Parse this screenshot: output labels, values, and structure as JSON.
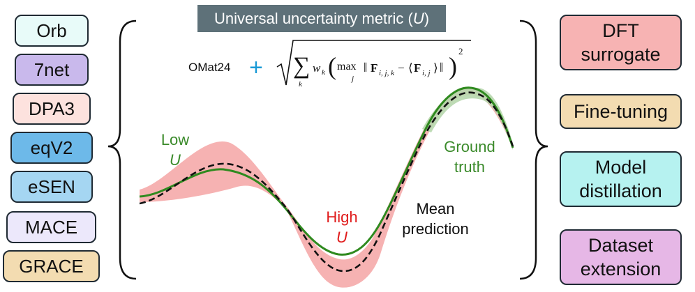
{
  "models": [
    {
      "label": "Orb",
      "color": "#e8fbf9"
    },
    {
      "label": "7net",
      "color": "#c9b9ec"
    },
    {
      "label": "DPA3",
      "color": "#fde2de"
    },
    {
      "label": "eqV2",
      "color": "#6db9e9"
    },
    {
      "label": "eSEN",
      "color": "#a5d6f2"
    },
    {
      "label": "MACE",
      "color": "#ece8fb"
    },
    {
      "label": "GRACE",
      "color": "#f3dcb1"
    }
  ],
  "applications": [
    {
      "lines": [
        "DFT",
        "surrogate"
      ],
      "color": "#f7b3b3"
    },
    {
      "lines": [
        "Fine-tuning"
      ],
      "color": "#f3dcb1"
    },
    {
      "lines": [
        "Model",
        "distillation"
      ],
      "color": "#b6f2f0"
    },
    {
      "lines": [
        "Dataset",
        "extension"
      ],
      "color": "#e6b7e6"
    }
  ],
  "title": {
    "text": "Universal uncertainty metric (",
    "symbol": "U",
    "close": ")"
  },
  "formula": {
    "prefix": "OMat24",
    "plus": "+"
  },
  "labels": {
    "low": [
      "Low",
      "U"
    ],
    "high": [
      "High",
      "U"
    ],
    "ground_truth": [
      "Ground",
      "truth"
    ],
    "mean_prediction": [
      "Mean",
      "prediction"
    ]
  },
  "colors": {
    "green": "#3a8a2a",
    "red": "#e01b1b",
    "band_red": "#f4a4a4",
    "band_green": "#b7d7ad",
    "plus_blue": "#1a9ad6"
  }
}
